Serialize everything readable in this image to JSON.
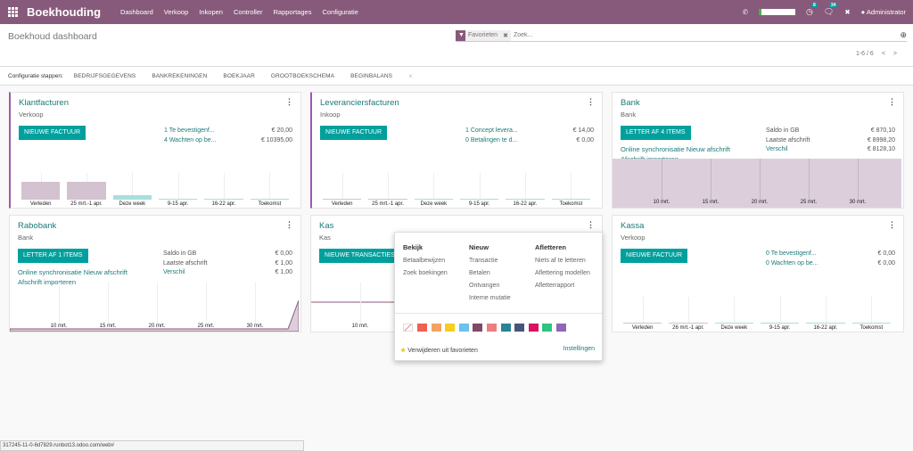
{
  "nav": {
    "app": "Boekhouding",
    "menu": [
      "Dashboard",
      "Verkoop",
      "Inkopen",
      "Controller",
      "Rapportages",
      "Configuratie"
    ],
    "badges": {
      "activities": "8",
      "messages": "34"
    },
    "user": "Administrator",
    "accent": "#875a7b"
  },
  "control": {
    "title": "Boekhoud dashboard",
    "facet": "Favorieten",
    "search_placeholder": "Zoek...",
    "pager": "1-6 / 6"
  },
  "setup": {
    "label": "Configuratie stappen:",
    "steps": [
      "Bedrijfsgegevens",
      "Bankrekeningen",
      "Boekjaar",
      "Grootboekschema",
      "Beginbalans"
    ]
  },
  "cards": [
    {
      "title": "Klantfacturen",
      "sub": "Verkoop",
      "button": "Nieuwe factuur",
      "stats": [
        [
          "1 Te bevestigenf...",
          "€ 20,00"
        ],
        [
          "4 Wachten op be...",
          "€ 10395,00"
        ]
      ],
      "graph": {
        "type": "bar",
        "categories": [
          "Verleden",
          "25 mrt.-1 apr.",
          "Deze week",
          "9-15 apr.",
          "16-22 apr.",
          "Toekomst"
        ],
        "values": [
          1,
          1,
          0.25,
          0,
          0,
          0
        ]
      }
    },
    {
      "title": "Leveranciersfacturen",
      "sub": "Inkoop",
      "button": "Nieuwe factuur",
      "stats": [
        [
          "1 Concept levera...",
          "€ 14,00"
        ],
        [
          "0 Betalingen te d...",
          "€ 0,00"
        ]
      ],
      "graph": {
        "type": "bar",
        "categories": [
          "Verleden",
          "25 mrt.-1 apr.",
          "Deze week",
          "9-15 apr.",
          "16-22 apr.",
          "Toekomst"
        ],
        "values": [
          0,
          0,
          0,
          0,
          0,
          0
        ]
      }
    },
    {
      "title": "Bank",
      "sub": "Bank",
      "button": "Letter af 4 items",
      "links": [
        "Online synchronisatie Nieuw afschrift",
        "Afschrift importeren"
      ],
      "stats": [
        [
          "Saldo in GB",
          "€ 870,10"
        ],
        [
          "Laatste afschrift",
          "€ 8998,20"
        ],
        [
          "Verschil",
          "€ 8128,10"
        ]
      ],
      "graph": {
        "type": "line",
        "ticks": [
          "10 mrt.",
          "15 mrt.",
          "20 mrt.",
          "25 mrt.",
          "30 mrt."
        ]
      }
    },
    {
      "title": "Rabobank",
      "sub": "Bank",
      "button": "Letter af 1 items",
      "links": [
        "Online synchronisatie Nieuw afschrift",
        "Afschrift importeren"
      ],
      "stats": [
        [
          "Saldo in GB",
          "€ 0,00"
        ],
        [
          "Laatste afschrift",
          "€ 1,00"
        ],
        [
          "Verschil",
          "€ 1,00"
        ]
      ],
      "graph": {
        "type": "line",
        "ticks": [
          "10 mrt.",
          "15 mrt.",
          "20 mrt.",
          "25 mrt.",
          "30 mrt."
        ]
      }
    },
    {
      "title": "Kas",
      "sub": "Kas",
      "button": "Nieuwe transacties",
      "graph": {
        "type": "line",
        "ticks": [
          "10 mrt."
        ]
      }
    },
    {
      "title": "Kassa",
      "sub": "Verkoop",
      "button": "Nieuwe factuur",
      "stats": [
        [
          "0 Te bevestigenf...",
          "€ 0,00"
        ],
        [
          "0 Wachten op be...",
          "€ 0,00"
        ]
      ],
      "graph": {
        "type": "bar",
        "categories": [
          "Verleden",
          "26 mrt.-1 apr.",
          "Deze week",
          "9-15 apr.",
          "16-22 apr.",
          "Toekomst"
        ],
        "values": [
          0,
          0,
          0,
          0,
          0,
          0
        ]
      }
    }
  ],
  "dropdown": {
    "columns": [
      {
        "title": "Bekijk",
        "items": [
          "Betaalbewijzen",
          "Zoek boekingen"
        ]
      },
      {
        "title": "Nieuw",
        "items": [
          "Transactie",
          "Betalen",
          "Ontvangen",
          "Interne mutatie"
        ]
      },
      {
        "title": "Afletteren",
        "items": [
          "Niets af te letteren",
          "Aflettering modellen",
          "Afletterrapport"
        ]
      }
    ],
    "colors": [
      "#f06050",
      "#f4a460",
      "#f7cd1f",
      "#6cc1ed",
      "#814968",
      "#eb7e7f",
      "#2c8397",
      "#475577",
      "#d6145f",
      "#30c381",
      "#9365b8"
    ],
    "favorite": "Verwijderen uit favorieten",
    "settings": "Instellingen"
  },
  "statusbar": "317245-11-0-6d7829.runbot13.odoo.com/web#"
}
